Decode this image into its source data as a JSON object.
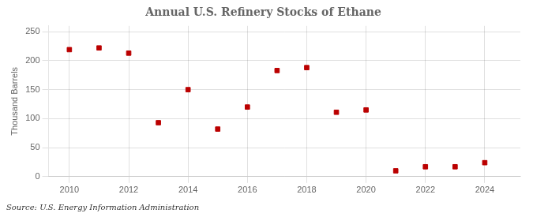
{
  "chart_data": {
    "type": "scatter",
    "title": "Annual U.S. Refinery Stocks of Ethane",
    "ylabel": "Thousand Barrels",
    "source": "Source: U.S. Energy Information Administration",
    "x": [
      2010,
      2011,
      2012,
      2013,
      2014,
      2015,
      2016,
      2017,
      2018,
      2019,
      2020,
      2021,
      2022,
      2023,
      2024
    ],
    "values": [
      219,
      222,
      213,
      93,
      150,
      82,
      120,
      183,
      188,
      111,
      115,
      10,
      17,
      17,
      24
    ],
    "color": "#bb0000",
    "marker": "square",
    "xlim": [
      2009.3,
      2025.2
    ],
    "xticks": [
      2010,
      2012,
      2014,
      2016,
      2018,
      2020,
      2022,
      2024
    ],
    "ylim": [
      0,
      260
    ],
    "yticks": [
      0,
      50,
      100,
      150,
      200,
      250
    ],
    "grid": true
  }
}
